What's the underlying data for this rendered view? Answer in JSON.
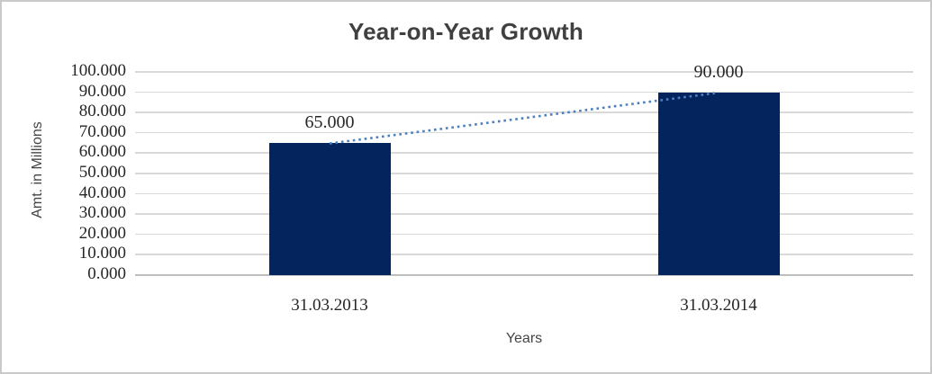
{
  "chart_data": {
    "type": "bar",
    "title": "Year-on-Year Growth",
    "xlabel": "Years",
    "ylabel": "Amt. in Millions",
    "categories": [
      "31.03.2013",
      "31.03.2014"
    ],
    "values": [
      65,
      90
    ],
    "data_labels": [
      "65.000",
      "90.000"
    ],
    "ylim": [
      0,
      100
    ],
    "ytick_step": 10,
    "ytick_labels": [
      "0.000",
      "10.000",
      "20.000",
      "30.000",
      "40.000",
      "50.000",
      "60.000",
      "70.000",
      "80.000",
      "90.000",
      "100.000"
    ],
    "grid": true,
    "legend": "none",
    "trendline": {
      "type": "linear",
      "style": "dotted",
      "from_value": 65,
      "to_value": 90
    },
    "colors": {
      "bar": "#03245D",
      "trendline": "#4E80BD",
      "gridline": "#D9D9D9",
      "axis_line": "#BEBEBE",
      "title_text": "#404040",
      "axis_title_text": "#454545",
      "tick_label_text": "#262626",
      "data_label_text": "#262626",
      "frame_border": "#C9C9C9",
      "background": "#FFFFFF"
    }
  }
}
